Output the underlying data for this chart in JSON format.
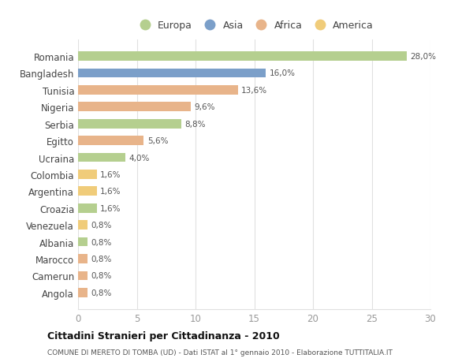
{
  "countries": [
    "Romania",
    "Bangladesh",
    "Tunisia",
    "Nigeria",
    "Serbia",
    "Egitto",
    "Ucraina",
    "Colombia",
    "Argentina",
    "Croazia",
    "Venezuela",
    "Albania",
    "Marocco",
    "Camerun",
    "Angola"
  ],
  "values": [
    28.0,
    16.0,
    13.6,
    9.6,
    8.8,
    5.6,
    4.0,
    1.6,
    1.6,
    1.6,
    0.8,
    0.8,
    0.8,
    0.8,
    0.8
  ],
  "labels": [
    "28,0%",
    "16,0%",
    "13,6%",
    "9,6%",
    "8,8%",
    "5,6%",
    "4,0%",
    "1,6%",
    "1,6%",
    "1,6%",
    "0,8%",
    "0,8%",
    "0,8%",
    "0,8%",
    "0,8%"
  ],
  "continents": [
    "Europa",
    "Asia",
    "Africa",
    "Africa",
    "Europa",
    "Africa",
    "Europa",
    "America",
    "America",
    "Europa",
    "America",
    "Europa",
    "Africa",
    "Africa",
    "Africa"
  ],
  "colors": {
    "Europa": "#b5cf8f",
    "Asia": "#7b9fc9",
    "Africa": "#e8b48a",
    "America": "#f0cc7a"
  },
  "legend_order": [
    "Europa",
    "Asia",
    "Africa",
    "America"
  ],
  "title": "Cittadini Stranieri per Cittadinanza - 2010",
  "subtitle": "COMUNE DI MERETO DI TOMBA (UD) - Dati ISTAT al 1° gennaio 2010 - Elaborazione TUTTITALIA.IT",
  "xlim": [
    0,
    30
  ],
  "xticks": [
    0,
    5,
    10,
    15,
    20,
    25,
    30
  ],
  "bg_color": "#ffffff",
  "grid_color": "#e0e0e0",
  "bar_height": 0.55
}
